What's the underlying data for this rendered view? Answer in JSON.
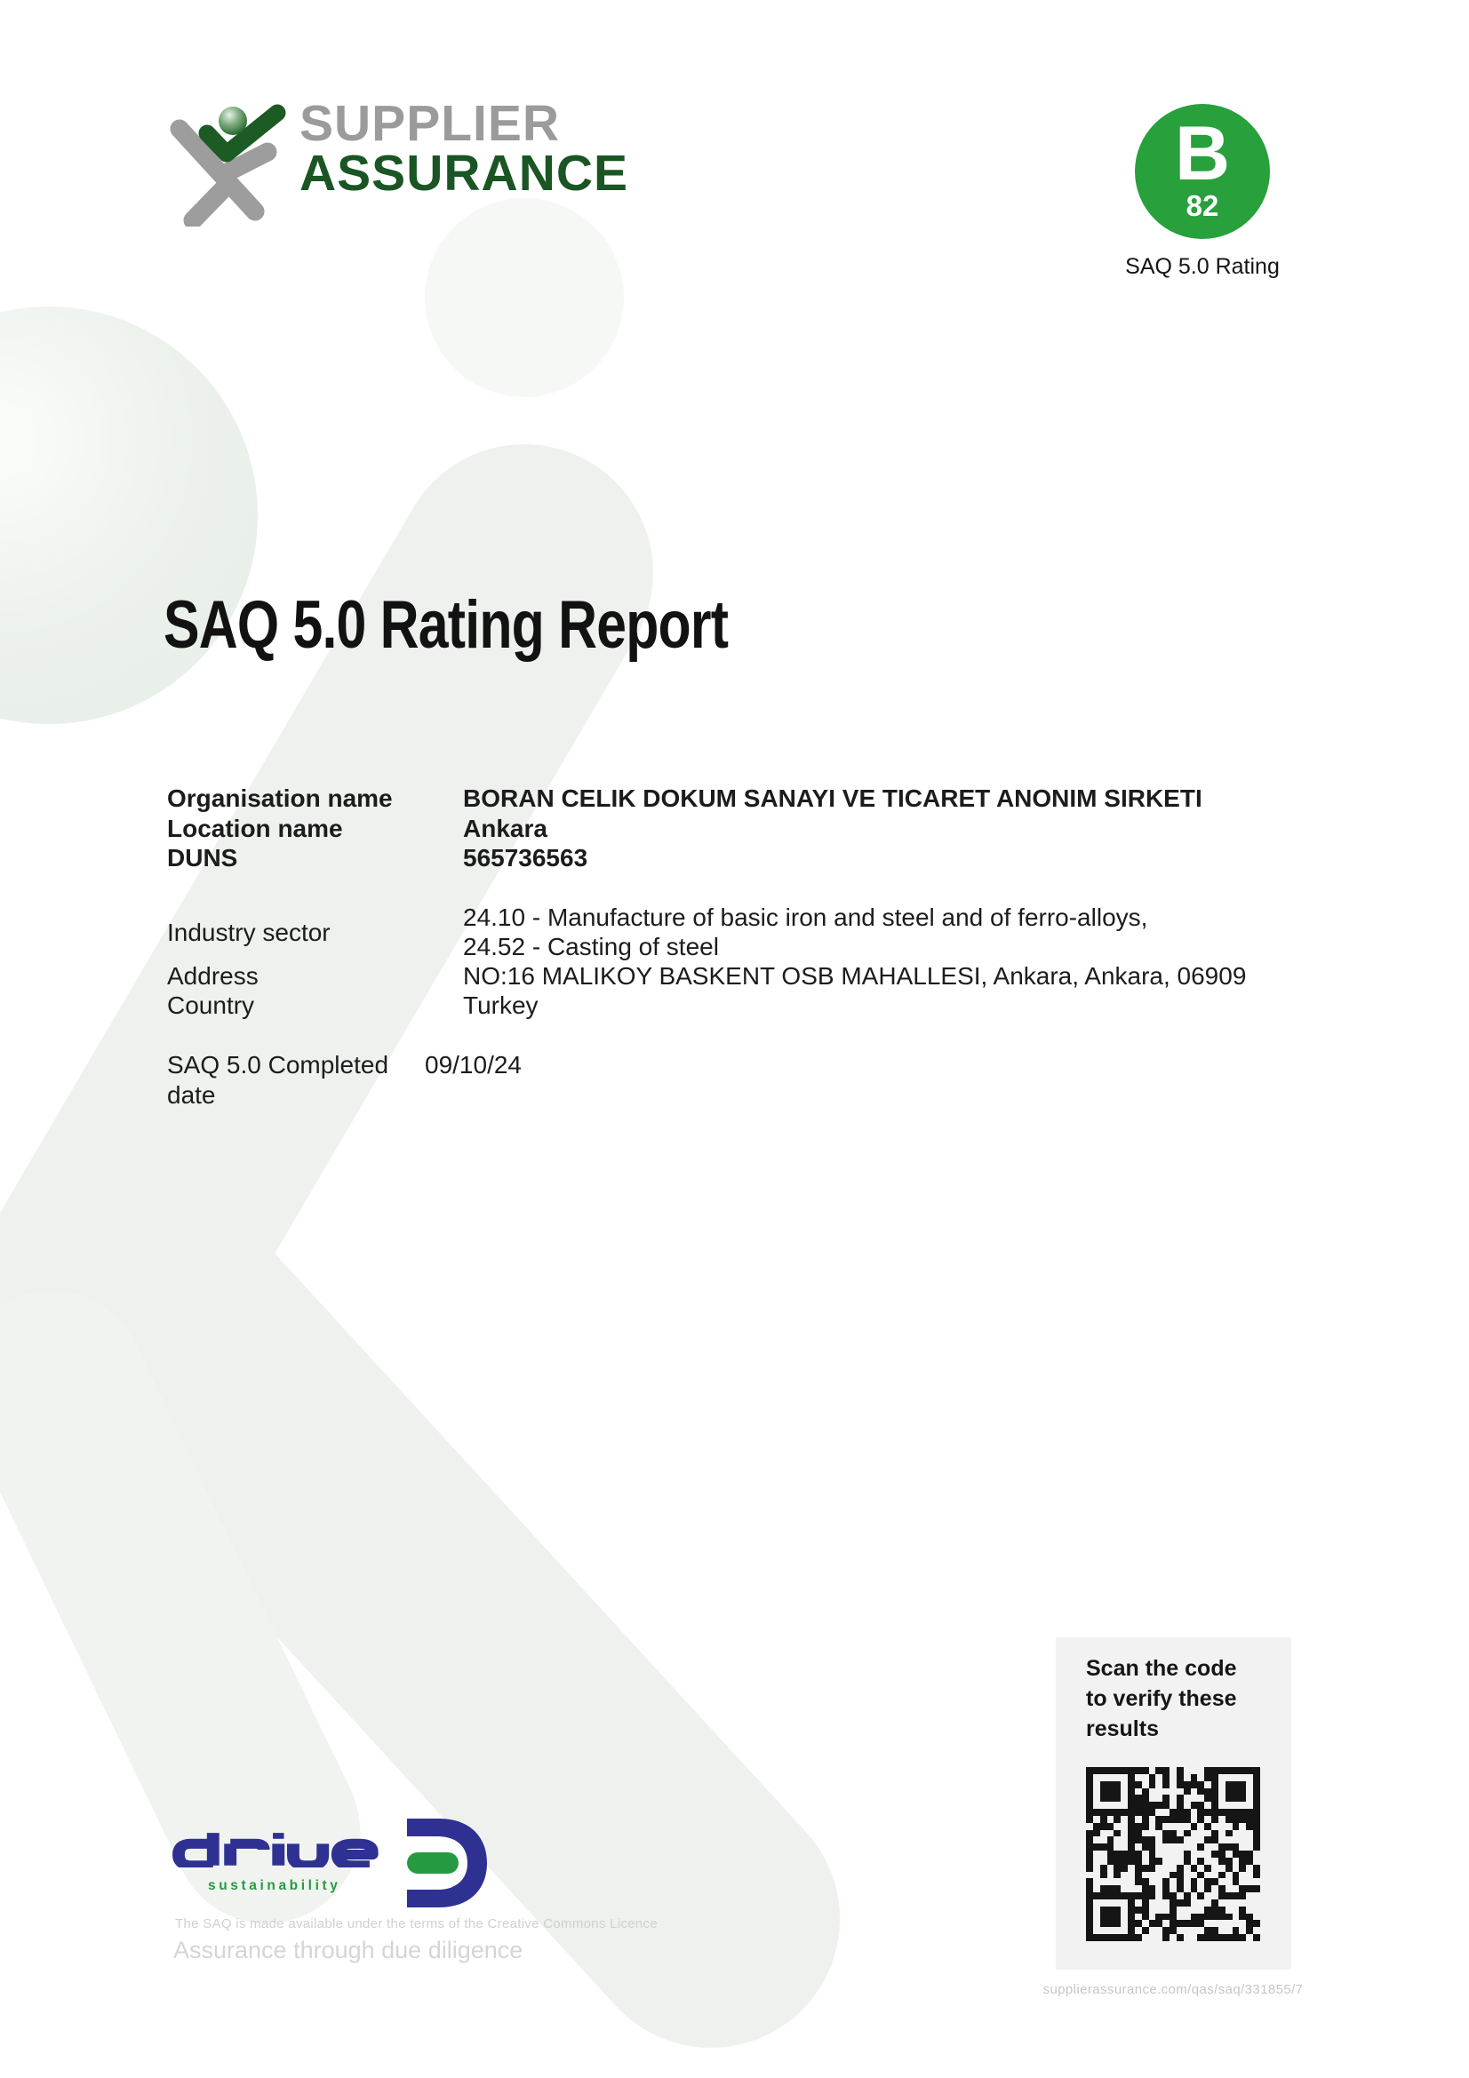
{
  "colors": {
    "rating_green": "#28a03c",
    "logo_gray": "#9b9b9b",
    "logo_dark_green": "#1a5524",
    "drive_navy": "#2e3192",
    "drive_green": "#259a41"
  },
  "header": {
    "brand_word_top": "SUPPLIER",
    "brand_word_bottom": "ASSURANCE"
  },
  "rating_badge": {
    "grade": "B",
    "score": "82",
    "caption": "SAQ 5.0 Rating"
  },
  "title": "SAQ 5.0 Rating Report",
  "details": {
    "organisation": {
      "label": "Organisation name",
      "value": "BORAN CELIK DOKUM SANAYI VE TICARET ANONIM SIRKETI"
    },
    "location": {
      "label": "Location name",
      "value": "Ankara"
    },
    "duns": {
      "label": "DUNS",
      "value": "565736563"
    },
    "industry": {
      "label": "Industry sector",
      "value_line1": "24.10 - Manufacture of basic iron and steel and of ferro-alloys,",
      "value_line2": "24.52 - Casting of steel"
    },
    "address": {
      "label": "Address",
      "value": "NO:16 MALIKOY BASKENT OSB MAHALLESI, Ankara, Ankara, 06909"
    },
    "country": {
      "label": "Country",
      "value": "Turkey"
    },
    "completed": {
      "label": "SAQ 5.0 Completed date",
      "value": "09/10/24"
    }
  },
  "verify_panel": {
    "heading_line1": "Scan the code",
    "heading_line2": "to verify these",
    "heading_line3": "results",
    "url": "supplierassurance.com/qas/saq/331855/7"
  },
  "footer": {
    "drive_wordmark": "drive",
    "drive_subtitle": "sustainability",
    "licence_note": "The SAQ is made available under the terms of the Creative Commons Licence",
    "tagline": "Assurance through due diligence"
  }
}
